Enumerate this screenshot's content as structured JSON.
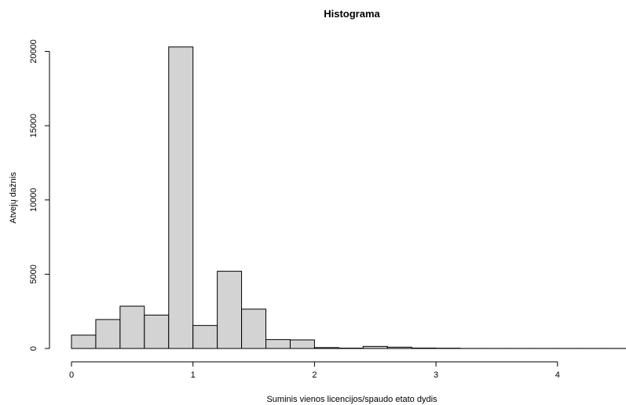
{
  "chart_data": {
    "type": "bar",
    "title": "Histograma",
    "xlabel": "Suminis vienos licencijos/spaudo etato dydis",
    "ylabel": "Atvejų dažnis",
    "bin_width": 0.2,
    "bins": [
      {
        "x0": 0.0,
        "x1": 0.2,
        "count": 900
      },
      {
        "x0": 0.2,
        "x1": 0.4,
        "count": 1950
      },
      {
        "x0": 0.4,
        "x1": 0.6,
        "count": 2850
      },
      {
        "x0": 0.6,
        "x1": 0.8,
        "count": 2250
      },
      {
        "x0": 0.8,
        "x1": 1.0,
        "count": 20300
      },
      {
        "x0": 1.0,
        "x1": 1.2,
        "count": 1550
      },
      {
        "x0": 1.2,
        "x1": 1.4,
        "count": 5200
      },
      {
        "x0": 1.4,
        "x1": 1.6,
        "count": 2650
      },
      {
        "x0": 1.6,
        "x1": 1.8,
        "count": 600
      },
      {
        "x0": 1.8,
        "x1": 2.0,
        "count": 580
      },
      {
        "x0": 2.0,
        "x1": 2.2,
        "count": 60
      },
      {
        "x0": 2.2,
        "x1": 2.4,
        "count": 25
      },
      {
        "x0": 2.4,
        "x1": 2.6,
        "count": 140
      },
      {
        "x0": 2.6,
        "x1": 2.8,
        "count": 90
      },
      {
        "x0": 2.8,
        "x1": 3.0,
        "count": 30
      },
      {
        "x0": 3.0,
        "x1": 3.2,
        "count": 20
      },
      {
        "x0": 3.2,
        "x1": 3.4,
        "count": 5
      },
      {
        "x0": 3.4,
        "x1": 3.6,
        "count": 5
      },
      {
        "x0": 3.6,
        "x1": 3.8,
        "count": 5
      },
      {
        "x0": 3.8,
        "x1": 4.0,
        "count": 5
      },
      {
        "x0": 4.0,
        "x1": 4.2,
        "count": 5
      },
      {
        "x0": 4.2,
        "x1": 4.4,
        "count": 5
      },
      {
        "x0": 4.4,
        "x1": 4.6,
        "count": 5
      }
    ],
    "xlim": [
      0,
      4.6
    ],
    "ylim": [
      0,
      21000
    ],
    "x_ticks": [
      0,
      1,
      2,
      3,
      4
    ],
    "x_tick_labels": [
      "0",
      "1",
      "2",
      "3",
      "4"
    ],
    "y_ticks": [
      0,
      5000,
      10000,
      15000,
      20000
    ],
    "y_tick_labels": [
      "0",
      "5000",
      "10000",
      "15000",
      "20000"
    ],
    "grid": false
  }
}
